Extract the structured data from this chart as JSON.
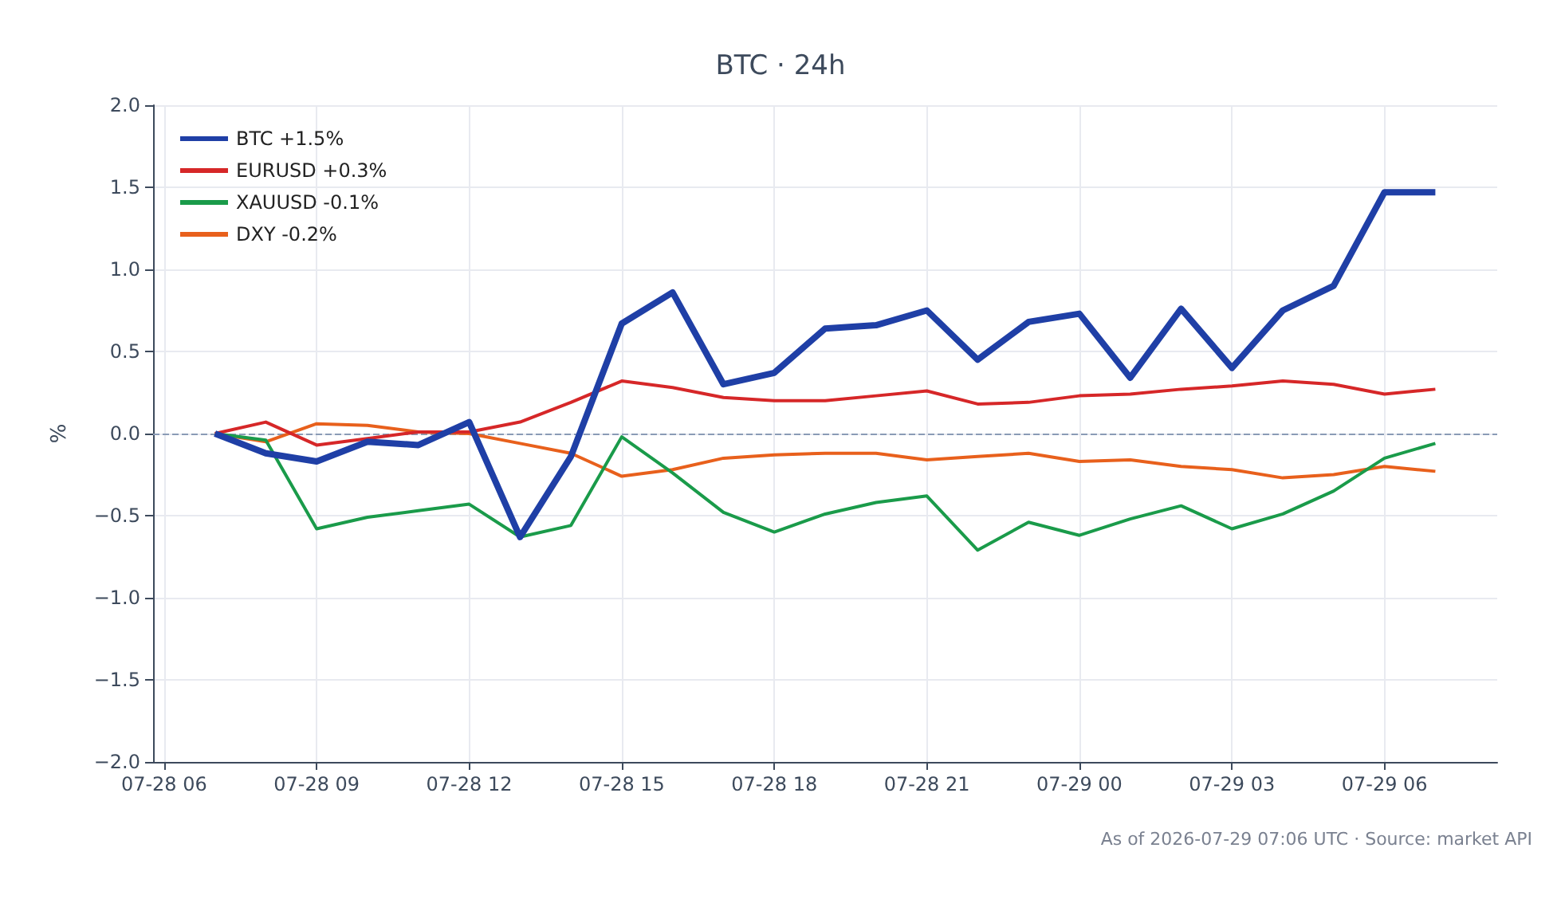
{
  "chart_data": {
    "type": "line",
    "title": "BTC · 24h",
    "ylabel": "%",
    "annotations": [
      "As of 2026-07-29 07:06 UTC · Source: market API"
    ],
    "x": [
      "2026-07-28T07:00",
      "2026-07-28T08:00",
      "2026-07-28T09:00",
      "2026-07-28T10:00",
      "2026-07-28T11:00",
      "2026-07-28T12:00",
      "2026-07-28T13:00",
      "2026-07-28T14:00",
      "2026-07-28T15:00",
      "2026-07-28T16:00",
      "2026-07-28T17:00",
      "2026-07-28T18:00",
      "2026-07-28T19:00",
      "2026-07-28T20:00",
      "2026-07-28T21:00",
      "2026-07-28T22:00",
      "2026-07-28T23:00",
      "2026-07-29T00:00",
      "2026-07-29T01:00",
      "2026-07-29T02:00",
      "2026-07-29T03:00",
      "2026-07-29T04:00",
      "2026-07-29T05:00",
      "2026-07-29T06:00",
      "2026-07-29T07:00"
    ],
    "series": [
      {
        "name": "BTC +1.5%",
        "color": "#1f3fa6",
        "values": [
          0,
          -0.12,
          -0.17,
          -0.05,
          -0.07,
          0.07,
          -0.63,
          -0.14,
          0.67,
          0.86,
          0.3,
          0.37,
          0.64,
          0.66,
          0.75,
          0.45,
          0.68,
          0.73,
          0.34,
          0.76,
          0.4,
          0.75,
          0.9,
          1.47,
          1.47
        ]
      },
      {
        "name": "EURUSD +0.3%",
        "color": "#d62728",
        "values": [
          0,
          0.07,
          -0.07,
          -0.03,
          0.01,
          0.01,
          0.07,
          0.19,
          0.32,
          0.28,
          0.22,
          0.2,
          0.2,
          0.23,
          0.26,
          0.18,
          0.19,
          0.23,
          0.24,
          0.27,
          0.29,
          0.32,
          0.3,
          0.24,
          0.27
        ]
      },
      {
        "name": "XAUUSD -0.1%",
        "color": "#1a9b4a",
        "values": [
          0,
          -0.04,
          -0.58,
          -0.51,
          -0.47,
          -0.43,
          -0.63,
          -0.56,
          -0.02,
          -0.24,
          -0.48,
          -0.6,
          -0.49,
          -0.42,
          -0.38,
          -0.71,
          -0.54,
          -0.62,
          -0.52,
          -0.44,
          -0.58,
          -0.49,
          -0.35,
          -0.15,
          -0.06
        ]
      },
      {
        "name": "DXY -0.2%",
        "color": "#e8601c",
        "values": [
          0,
          -0.05,
          0.06,
          0.05,
          0.01,
          0,
          -0.06,
          -0.12,
          -0.26,
          -0.22,
          -0.15,
          -0.13,
          -0.12,
          -0.12,
          -0.16,
          -0.14,
          -0.12,
          -0.17,
          -0.16,
          -0.2,
          -0.22,
          -0.27,
          -0.25,
          -0.2,
          -0.23
        ]
      }
    ],
    "xlim": [
      "2026-07-28T05:47",
      "2026-07-29T08:13"
    ],
    "xticks": [
      {
        "value": "2026-07-28T06:00",
        "label": "07-28 06"
      },
      {
        "value": "2026-07-28T09:00",
        "label": "07-28 09"
      },
      {
        "value": "2026-07-28T12:00",
        "label": "07-28 12"
      },
      {
        "value": "2026-07-28T15:00",
        "label": "07-28 15"
      },
      {
        "value": "2026-07-28T18:00",
        "label": "07-28 18"
      },
      {
        "value": "2026-07-28T21:00",
        "label": "07-28 21"
      },
      {
        "value": "2026-07-29T00:00",
        "label": "07-29 00"
      },
      {
        "value": "2026-07-29T03:00",
        "label": "07-29 03"
      },
      {
        "value": "2026-07-29T06:00",
        "label": "07-29 06"
      }
    ],
    "ylim": [
      -2,
      2
    ],
    "yticks": [
      {
        "value": -2,
        "label": "−2.0"
      },
      {
        "value": -1.5,
        "label": "−1.5"
      },
      {
        "value": -1,
        "label": "−1.0"
      },
      {
        "value": -0.5,
        "label": "−0.5"
      },
      {
        "value": 0,
        "label": "0.0"
      },
      {
        "value": 0.5,
        "label": "0.5"
      },
      {
        "value": 1,
        "label": "1.0"
      },
      {
        "value": 1.5,
        "label": "1.5"
      },
      {
        "value": 2,
        "label": "2.0"
      }
    ],
    "ref_lines": [
      {
        "axis": "y",
        "value": 0,
        "color": "#8a9bb5",
        "line_style": "dashed"
      }
    ],
    "grid": true,
    "legend": "top left",
    "marker": "none",
    "line_style": "solid"
  }
}
